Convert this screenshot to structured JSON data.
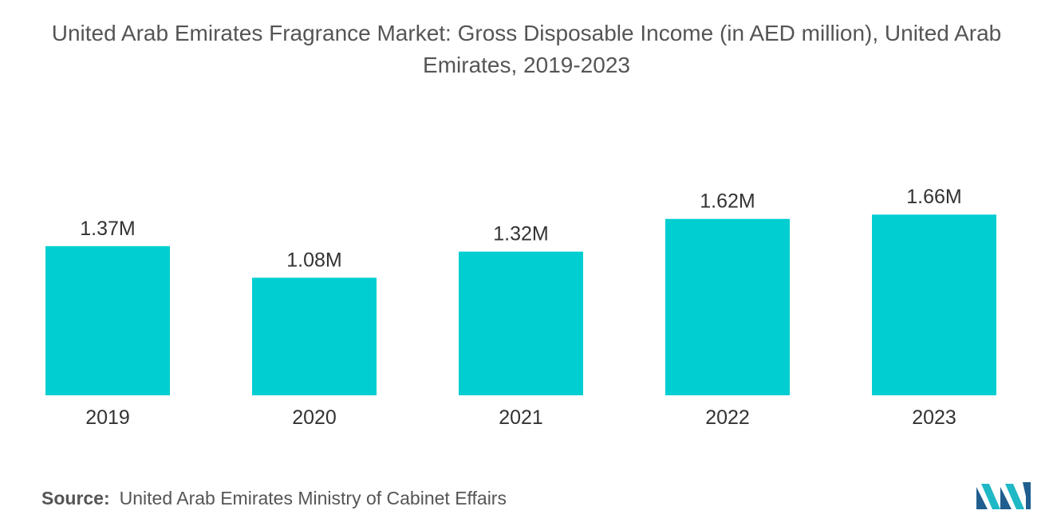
{
  "chart_data": {
    "type": "bar",
    "title": "United Arab Emirates Fragrance Market: Gross Disposable Income (in AED million), United Arab Emirates, 2019-2023",
    "categories": [
      "2019",
      "2020",
      "2021",
      "2022",
      "2023"
    ],
    "values": [
      1.37,
      1.08,
      1.32,
      1.62,
      1.66
    ],
    "data_labels": [
      "1.37M",
      "1.08M",
      "1.32M",
      "1.62M",
      "1.66M"
    ],
    "bar_color": "#00ced1",
    "xlabel": "",
    "ylabel": "",
    "grid": false,
    "legend": "none"
  },
  "source": {
    "label": "Source:",
    "text": "United Arab Emirates Ministry of Cabinet Effairs"
  },
  "logo": {
    "icon": "mordor-intelligence-logo-icon",
    "colors": [
      "#1f5e8e",
      "#1fb8c6"
    ]
  }
}
